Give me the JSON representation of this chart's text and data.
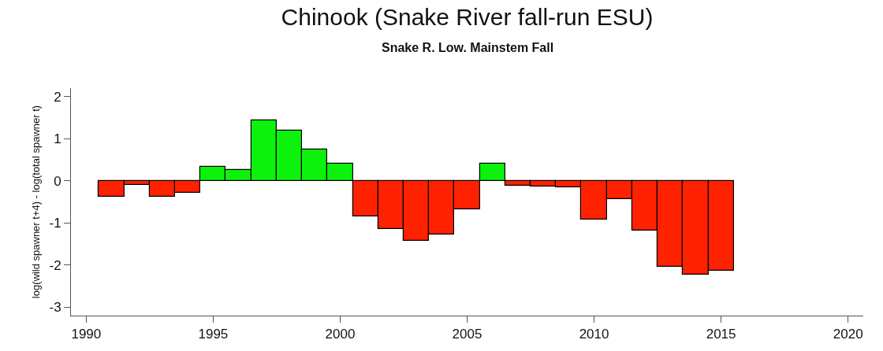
{
  "chart_data": {
    "type": "bar",
    "title": "Chinook (Snake River fall-run ESU)",
    "subtitle": "Snake R. Low. Mainstem Fall",
    "ylabel": "log(wild spawner t+4) - log(total spawner t)",
    "x": [
      1991,
      1992,
      1993,
      1994,
      1995,
      1996,
      1997,
      1998,
      1999,
      2000,
      2001,
      2002,
      2003,
      2004,
      2005,
      2006,
      2007,
      2008,
      2009,
      2010,
      2011,
      2012,
      2013,
      2014,
      2015
    ],
    "values": [
      -0.37,
      -0.09,
      -0.37,
      -0.28,
      0.34,
      0.26,
      1.44,
      1.19,
      0.75,
      0.4,
      -0.85,
      -1.14,
      -1.43,
      -1.28,
      -0.67,
      0.41,
      -0.12,
      -0.14,
      -0.16,
      -0.92,
      -0.44,
      -1.19,
      -2.05,
      -2.23,
      -2.13
    ],
    "colors": [
      "#ff2200",
      "#ff2200",
      "#ff2200",
      "#ff2200",
      "#0cf20c",
      "#0cf20c",
      "#0cf20c",
      "#0cf20c",
      "#0cf20c",
      "#0cf20c",
      "#ff2200",
      "#ff2200",
      "#ff2200",
      "#ff2200",
      "#ff2200",
      "#0cf20c",
      "#ff2200",
      "#ff2200",
      "#ff2200",
      "#ff2200",
      "#ff2200",
      "#ff2200",
      "#ff2200",
      "#ff2200",
      "#ff2200"
    ],
    "xlim": [
      1989.4,
      2020.6
    ],
    "xticks": [
      1990,
      1995,
      2000,
      2005,
      2010,
      2015,
      2020
    ],
    "ylim": [
      -3.2,
      2.2
    ],
    "yticks": [
      -3,
      -2,
      -1,
      0,
      1,
      2
    ]
  }
}
